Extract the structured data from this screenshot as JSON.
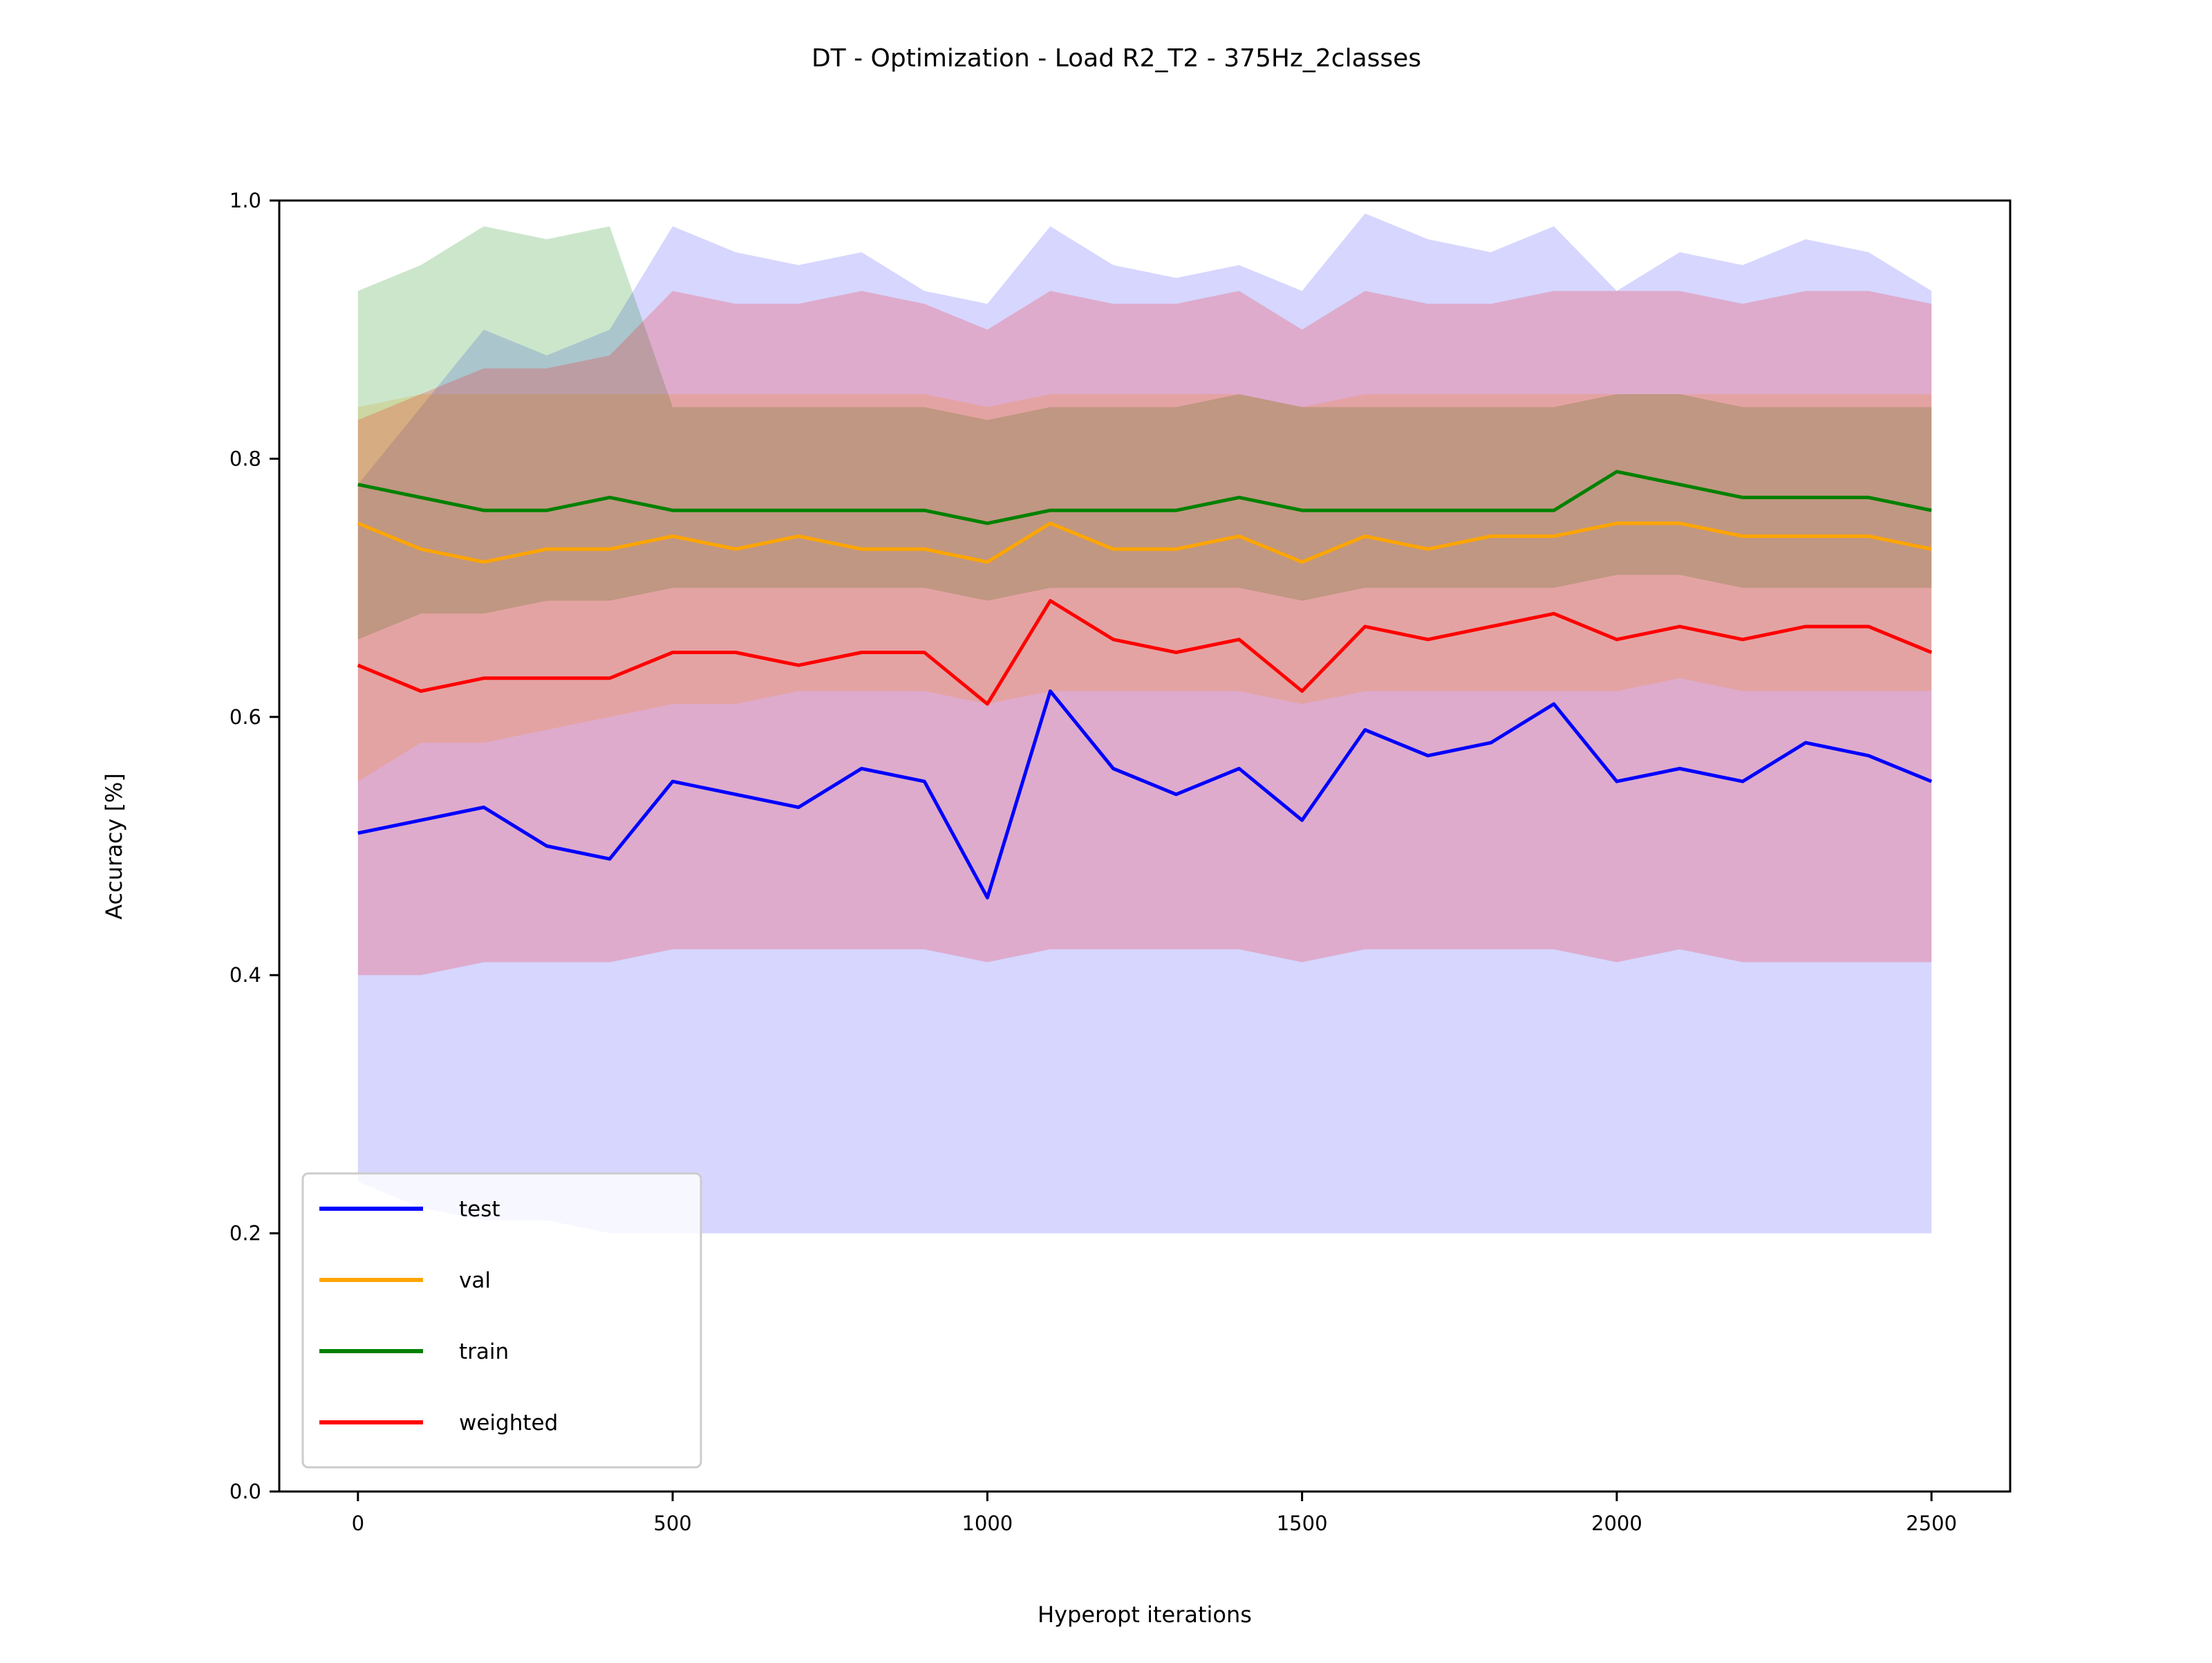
{
  "chart_data": {
    "type": "line",
    "title": "DT - Optimization - Load R2_T2 - 375Hz_2classes",
    "xlabel": "Hyperopt iterations",
    "ylabel": "Accuracy [%]",
    "xlim": [
      -125,
      2625
    ],
    "ylim": [
      0.0,
      1.0
    ],
    "x_ticks": [
      0,
      500,
      1000,
      1500,
      2000,
      2500
    ],
    "x_tick_labels": [
      "0",
      "500",
      "1000",
      "1500",
      "2000",
      "2500"
    ],
    "y_ticks": [
      0.0,
      0.2,
      0.4,
      0.6,
      0.8,
      1.0
    ],
    "y_tick_labels": [
      "0.0",
      "0.2",
      "0.4",
      "0.6",
      "0.8",
      "1.0"
    ],
    "grid": false,
    "legend_position": "lower-left",
    "x": [
      0,
      100,
      200,
      300,
      400,
      500,
      600,
      700,
      800,
      900,
      1000,
      1100,
      1200,
      1300,
      1400,
      1500,
      1600,
      1700,
      1800,
      1900,
      2000,
      2100,
      2200,
      2300,
      2400,
      2500
    ],
    "series": [
      {
        "name": "test",
        "color": "#0000ff",
        "values": [
          0.51,
          0.52,
          0.53,
          0.5,
          0.49,
          0.55,
          0.54,
          0.53,
          0.56,
          0.55,
          0.46,
          0.62,
          0.56,
          0.54,
          0.56,
          0.52,
          0.59,
          0.57,
          0.58,
          0.61,
          0.55,
          0.56,
          0.55,
          0.58,
          0.57,
          0.55
        ],
        "band_low": [
          0.24,
          0.22,
          0.21,
          0.21,
          0.2,
          0.2,
          0.2,
          0.2,
          0.2,
          0.2,
          0.2,
          0.2,
          0.2,
          0.2,
          0.2,
          0.2,
          0.2,
          0.2,
          0.2,
          0.2,
          0.2,
          0.2,
          0.2,
          0.2,
          0.2,
          0.2
        ],
        "band_high": [
          0.78,
          0.84,
          0.9,
          0.88,
          0.9,
          0.98,
          0.96,
          0.95,
          0.96,
          0.93,
          0.92,
          0.98,
          0.95,
          0.94,
          0.95,
          0.93,
          0.99,
          0.97,
          0.96,
          0.98,
          0.93,
          0.96,
          0.95,
          0.97,
          0.96,
          0.93
        ]
      },
      {
        "name": "val",
        "color": "#ffa500",
        "values": [
          0.75,
          0.73,
          0.72,
          0.73,
          0.73,
          0.74,
          0.73,
          0.74,
          0.73,
          0.73,
          0.72,
          0.75,
          0.73,
          0.73,
          0.74,
          0.72,
          0.74,
          0.73,
          0.74,
          0.74,
          0.75,
          0.75,
          0.74,
          0.74,
          0.74,
          0.73
        ],
        "band_low": [
          0.55,
          0.58,
          0.58,
          0.59,
          0.6,
          0.61,
          0.61,
          0.62,
          0.62,
          0.62,
          0.61,
          0.62,
          0.62,
          0.62,
          0.62,
          0.61,
          0.62,
          0.62,
          0.62,
          0.62,
          0.62,
          0.63,
          0.62,
          0.62,
          0.62,
          0.62
        ],
        "band_high": [
          0.84,
          0.85,
          0.85,
          0.85,
          0.85,
          0.85,
          0.85,
          0.85,
          0.85,
          0.85,
          0.84,
          0.85,
          0.85,
          0.85,
          0.85,
          0.84,
          0.85,
          0.85,
          0.85,
          0.85,
          0.85,
          0.85,
          0.85,
          0.85,
          0.85,
          0.85
        ]
      },
      {
        "name": "train",
        "color": "#008000",
        "values": [
          0.78,
          0.77,
          0.76,
          0.76,
          0.77,
          0.76,
          0.76,
          0.76,
          0.76,
          0.76,
          0.75,
          0.76,
          0.76,
          0.76,
          0.77,
          0.76,
          0.76,
          0.76,
          0.76,
          0.76,
          0.79,
          0.78,
          0.77,
          0.77,
          0.77,
          0.76
        ],
        "band_low": [
          0.66,
          0.68,
          0.68,
          0.69,
          0.69,
          0.7,
          0.7,
          0.7,
          0.7,
          0.7,
          0.69,
          0.7,
          0.7,
          0.7,
          0.7,
          0.69,
          0.7,
          0.7,
          0.7,
          0.7,
          0.71,
          0.71,
          0.7,
          0.7,
          0.7,
          0.7
        ],
        "band_high": [
          0.93,
          0.95,
          0.98,
          0.97,
          0.98,
          0.84,
          0.84,
          0.84,
          0.84,
          0.84,
          0.83,
          0.84,
          0.84,
          0.84,
          0.85,
          0.84,
          0.84,
          0.84,
          0.84,
          0.84,
          0.85,
          0.85,
          0.84,
          0.84,
          0.84,
          0.84
        ]
      },
      {
        "name": "weighted",
        "color": "#ff0000",
        "values": [
          0.64,
          0.62,
          0.63,
          0.63,
          0.63,
          0.65,
          0.65,
          0.64,
          0.65,
          0.65,
          0.61,
          0.69,
          0.66,
          0.65,
          0.66,
          0.62,
          0.67,
          0.66,
          0.67,
          0.68,
          0.66,
          0.67,
          0.66,
          0.67,
          0.67,
          0.65
        ],
        "band_low": [
          0.4,
          0.4,
          0.41,
          0.41,
          0.41,
          0.42,
          0.42,
          0.42,
          0.42,
          0.42,
          0.41,
          0.42,
          0.42,
          0.42,
          0.42,
          0.41,
          0.42,
          0.42,
          0.42,
          0.42,
          0.41,
          0.42,
          0.41,
          0.41,
          0.41,
          0.41
        ],
        "band_high": [
          0.83,
          0.85,
          0.87,
          0.87,
          0.88,
          0.93,
          0.92,
          0.92,
          0.93,
          0.92,
          0.9,
          0.93,
          0.92,
          0.92,
          0.93,
          0.9,
          0.93,
          0.92,
          0.92,
          0.93,
          0.93,
          0.93,
          0.92,
          0.93,
          0.93,
          0.92
        ]
      }
    ]
  }
}
